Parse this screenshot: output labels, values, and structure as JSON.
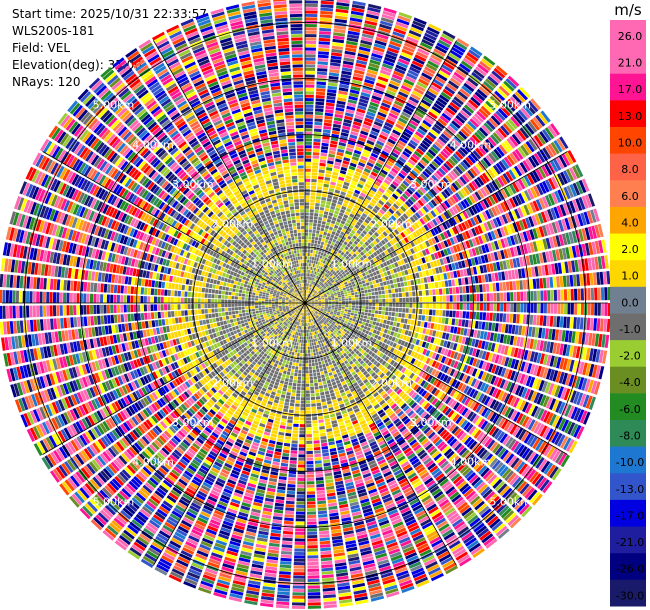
{
  "header": {
    "start_time": "Start time: 2025/10/31 22:33:57",
    "instrument": "WLS200s-181",
    "field": "Field: VEL",
    "elevation": "Elevation(deg): 35.00",
    "nrays": "NRays: 120"
  },
  "chart_data": {
    "type": "heatmap",
    "projection": "polar-ppi",
    "n_rays": 120,
    "range_rings_km": [
      1.0,
      2.0,
      3.0,
      4.0,
      5.0
    ],
    "ring_labels": [
      "1.00km",
      "2.00km",
      "3.00km",
      "4.00km",
      "5.00km"
    ],
    "max_range_km": 5.4,
    "colorbar": {
      "unit": "m/s",
      "boundaries": [
        -30.0,
        -26.0,
        -21.0,
        -17.0,
        -13.0,
        -10.0,
        -8.0,
        -6.0,
        -4.0,
        -2.0,
        -1.0,
        0.0,
        1.0,
        2.0,
        4.0,
        6.0,
        8.0,
        10.0,
        13.0,
        17.0,
        21.0,
        26.0,
        30.0
      ],
      "tick_labels": [
        "-30.0",
        "-26.0",
        "-21.0",
        "-17.0",
        "-13.0",
        "-10.0",
        "-8.0",
        "-6.0",
        "-4.0",
        "-2.0",
        "-1.0",
        "0.0",
        "1.0",
        "2.0",
        "4.0",
        "6.0",
        "8.0",
        "10.0",
        "13.0",
        "17.0",
        "21.0",
        "26.0"
      ],
      "colors": [
        "#1a1a6b",
        "#000080",
        "#1e1e9e",
        "#0000e0",
        "#3355cc",
        "#1e78d2",
        "#2e8b57",
        "#228b22",
        "#6b8e23",
        "#9acd32",
        "#6e6e6e",
        "#708090",
        "#ffd700",
        "#ffff00",
        "#ffa500",
        "#ff7f50",
        "#ff6347",
        "#ff4500",
        "#ff0000",
        "#ff1493",
        "#ff69b4",
        "#ff69b4"
      ]
    }
  },
  "colors": {
    "background": "#ffffff",
    "grid": "#000000",
    "ring_label": "#ffffff"
  }
}
